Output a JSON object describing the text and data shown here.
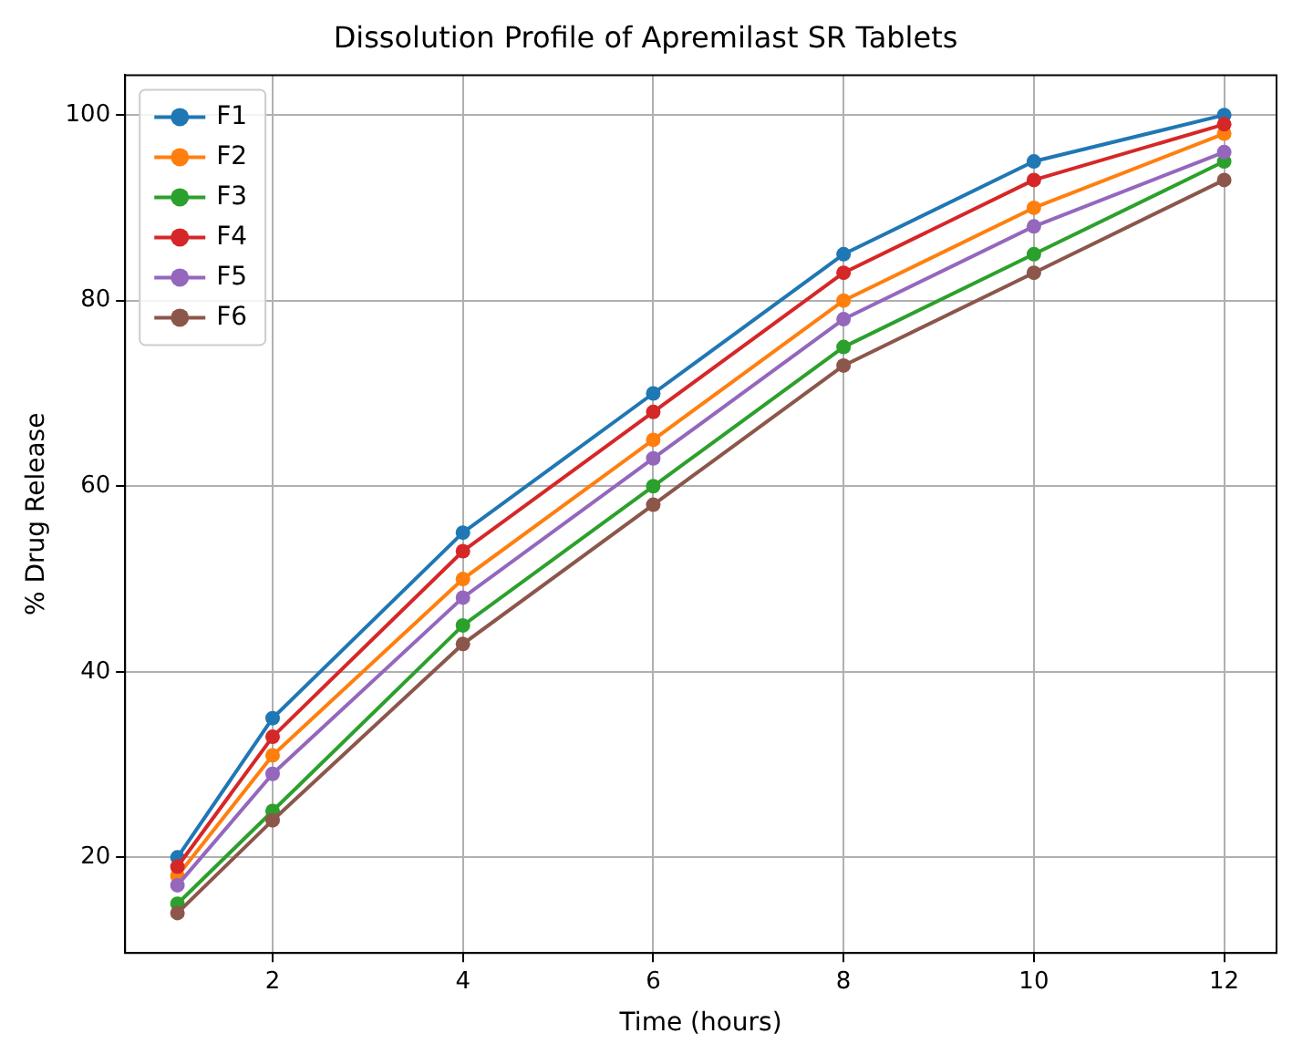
{
  "chart_data": {
    "type": "line",
    "title": "Dissolution Profile of Apremilast SR Tablets",
    "xlabel": "Time (hours)",
    "ylabel": "% Drug Release",
    "x": [
      1,
      2,
      4,
      6,
      8,
      10,
      12
    ],
    "series": [
      {
        "name": "F1",
        "color": "#1f77b4",
        "values": [
          20,
          35,
          55,
          70,
          85,
          95,
          100
        ]
      },
      {
        "name": "F2",
        "color": "#ff7f0e",
        "values": [
          18,
          31,
          50,
          65,
          80,
          90,
          98
        ]
      },
      {
        "name": "F3",
        "color": "#2ca02c",
        "values": [
          15,
          25,
          45,
          60,
          75,
          85,
          95
        ]
      },
      {
        "name": "F4",
        "color": "#d62728",
        "values": [
          19,
          33,
          53,
          68,
          83,
          93,
          99
        ]
      },
      {
        "name": "F5",
        "color": "#9467bd",
        "values": [
          17,
          29,
          48,
          63,
          78,
          88,
          96
        ]
      },
      {
        "name": "F6",
        "color": "#8c564b",
        "values": [
          14,
          24,
          43,
          58,
          73,
          83,
          93
        ]
      }
    ],
    "xlim": [
      0.45,
      12.55
    ],
    "xticks": [
      2,
      4,
      6,
      8,
      10,
      12
    ],
    "ylim": [
      9.7,
      104.3
    ],
    "yticks": [
      20,
      40,
      60,
      80,
      100
    ],
    "grid": true,
    "legend": "top left",
    "marker": "circle",
    "line_style": "solid"
  }
}
